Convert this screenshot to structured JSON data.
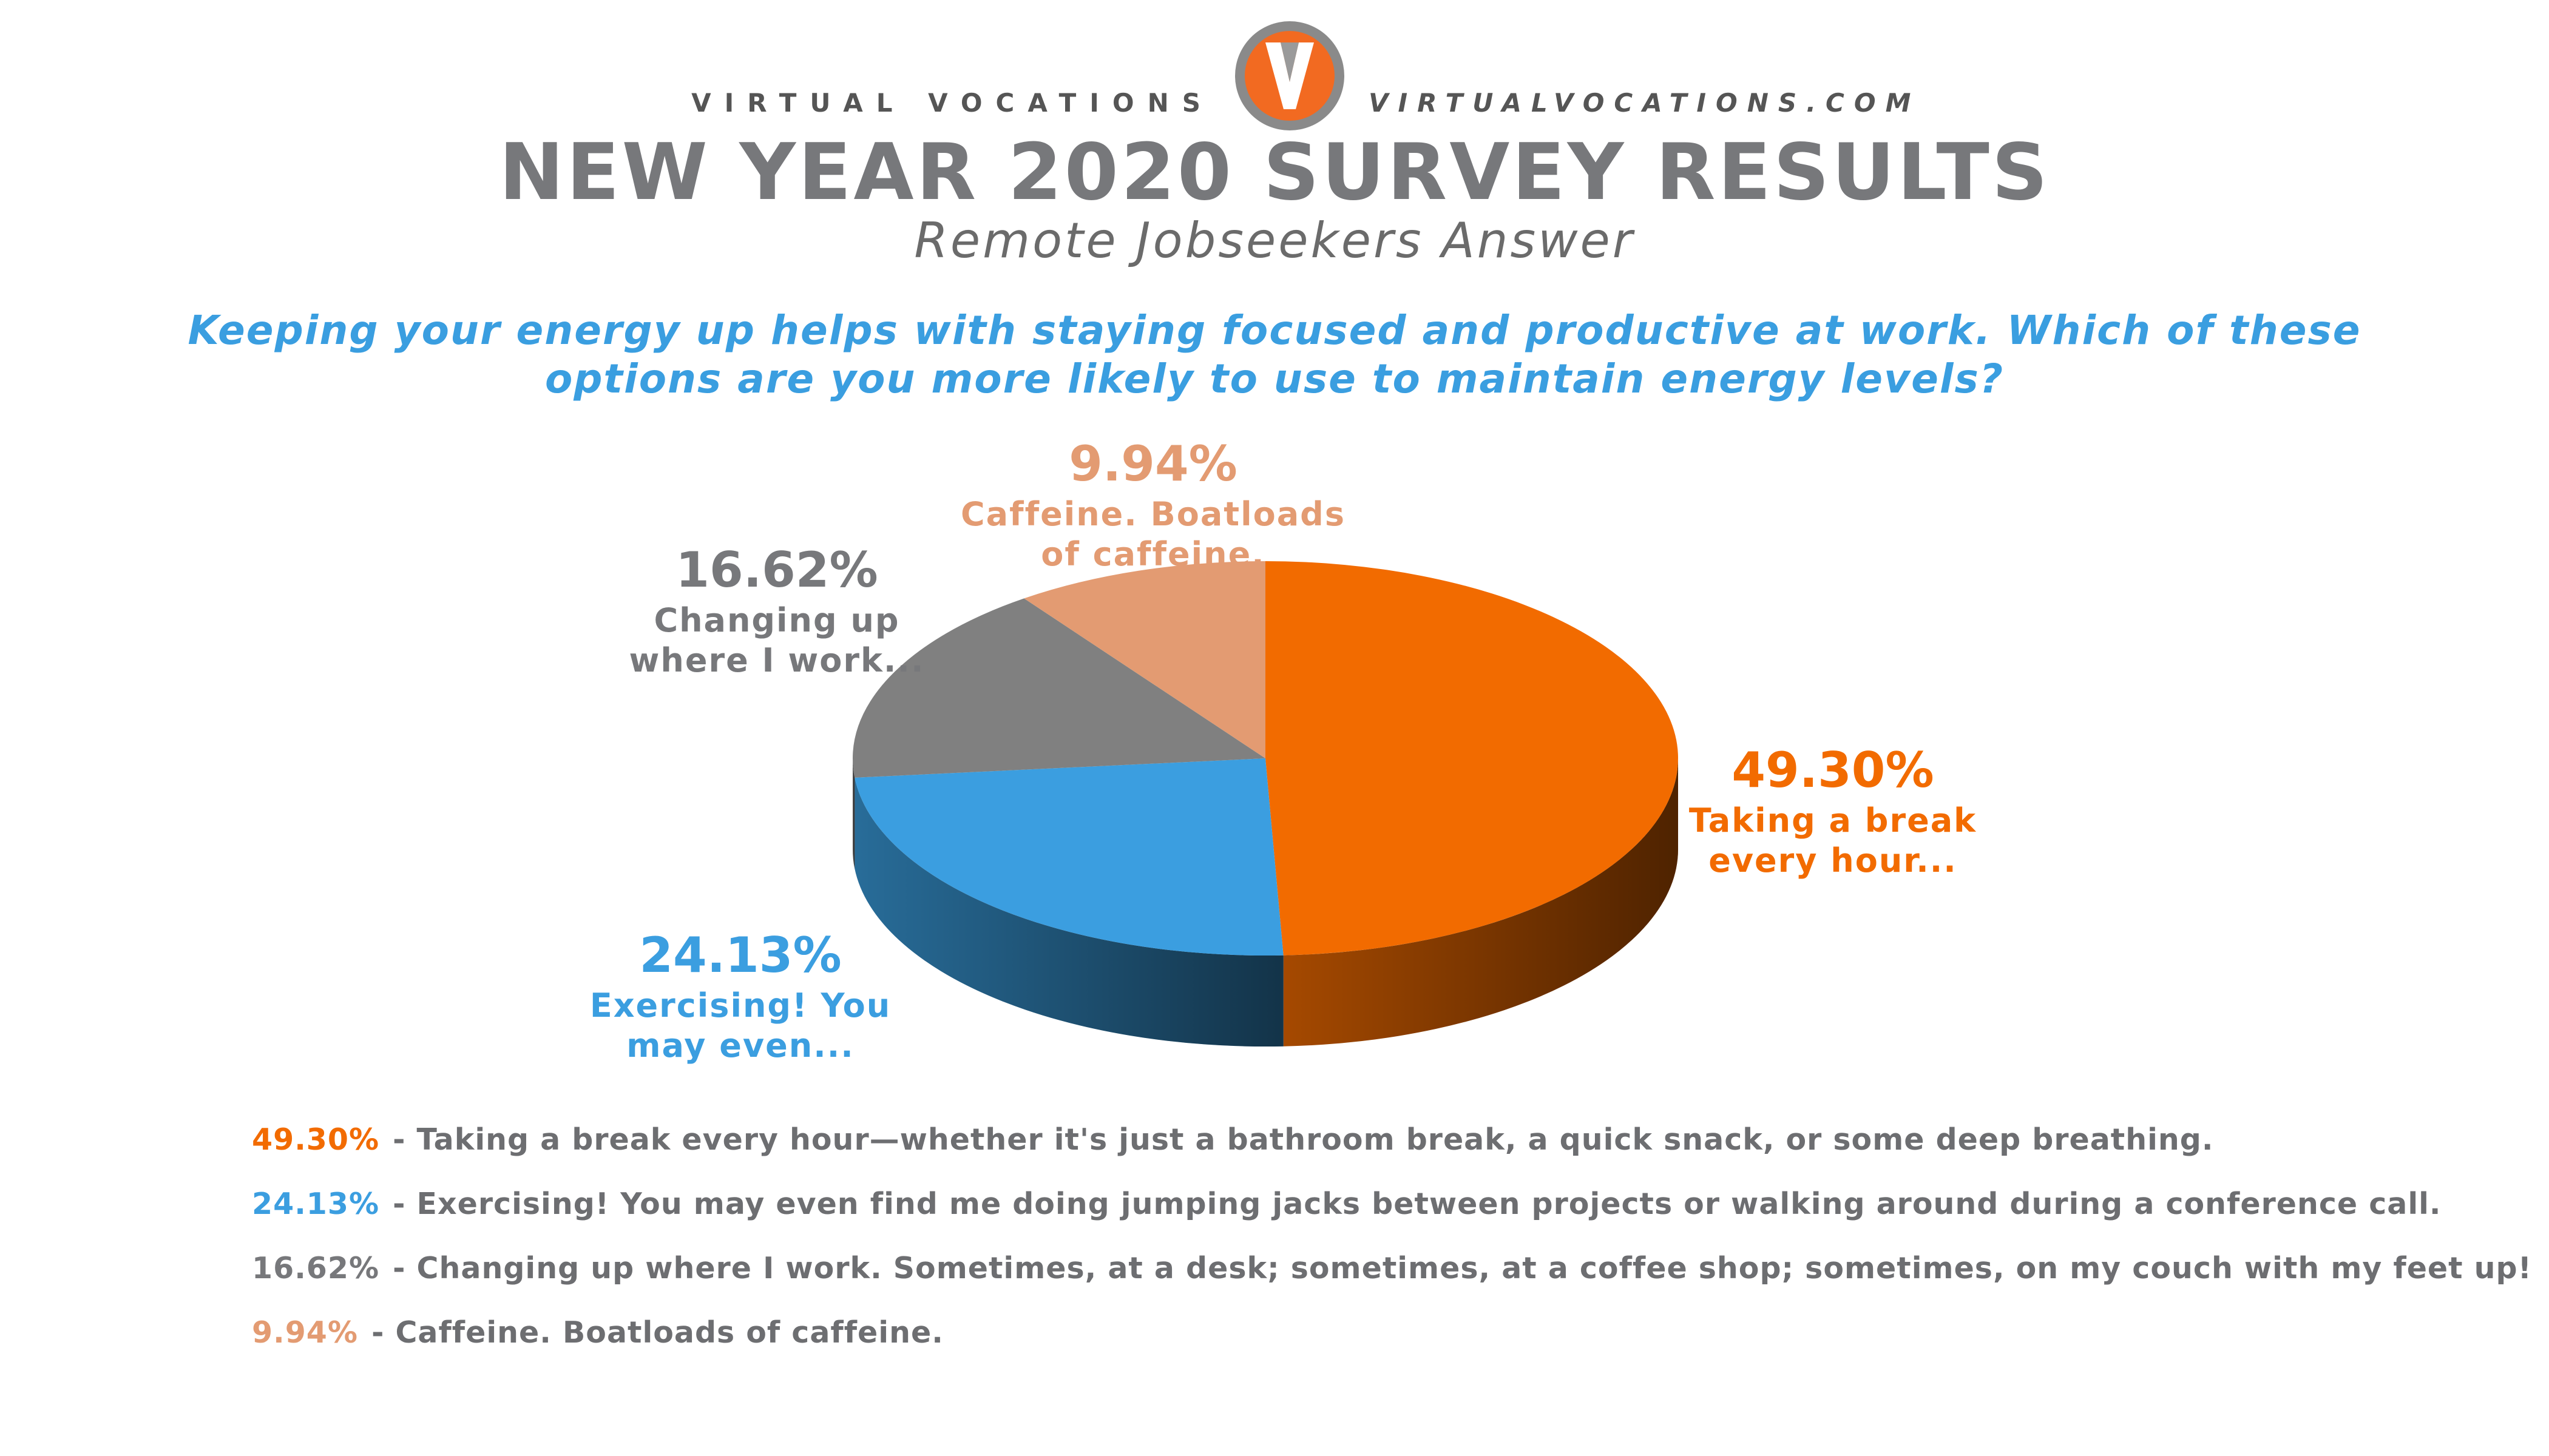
{
  "brand": {
    "left_text": "VIRTUAL VOCATIONS",
    "right_text": "VIRTUALVOCATIONS.COM",
    "logo_letter": "V",
    "logo_color": "#f26a21"
  },
  "header": {
    "title": "NEW YEAR 2020 SURVEY RESULTS",
    "subtitle": "Remote Jobseekers Answer"
  },
  "question": "Keeping your energy up helps with staying focused and productive at work. Which of these options are you more likely to use to maintain energy levels?",
  "chart_data": {
    "type": "pie",
    "style": "3d",
    "slices": [
      {
        "label": "Taking a break every hour...",
        "value": 49.3,
        "value_label": "49.30%",
        "color": "#f26b00"
      },
      {
        "label": "Exercising! You may even...",
        "value": 24.13,
        "value_label": "24.13%",
        "color": "#3b9ee0"
      },
      {
        "label": "Changing up where I work...",
        "value": 16.62,
        "value_label": "16.62%",
        "color": "#808080"
      },
      {
        "label": "Caffeine. Boatloads of caffeine.",
        "value": 9.94,
        "value_label": "9.94%",
        "color": "#e39b72"
      }
    ]
  },
  "slice_labels": {
    "s0": {
      "pct": "49.30%",
      "line1": "Taking a break",
      "line2": "every hour..."
    },
    "s1": {
      "pct": "24.13%",
      "line1": "Exercising! You",
      "line2": "may even..."
    },
    "s2": {
      "pct": "16.62%",
      "line1": "Changing up",
      "line2": "where I work..."
    },
    "s3": {
      "pct": "9.94%",
      "line1": "Caffeine. Boatloads",
      "line2": "of caffeine."
    }
  },
  "legend": [
    {
      "value": "49.30%",
      "text": "- Taking a break every hour—whether it's just a bathroom break, a quick snack, or some deep breathing.",
      "color": "#f26b00"
    },
    {
      "value": "24.13%",
      "text": "- Exercising! You may even find me doing jumping jacks between projects or walking around during a conference call.",
      "color": "#3b9ee0"
    },
    {
      "value": "16.62%",
      "text": "- Changing up where I work. Sometimes, at a desk; sometimes, at a coffee shop; sometimes, on my couch with my feet up!",
      "color": "#77787b"
    },
    {
      "value": "9.94%",
      "text": "- Caffeine. Boatloads of caffeine.",
      "color": "#e39b72"
    }
  ]
}
